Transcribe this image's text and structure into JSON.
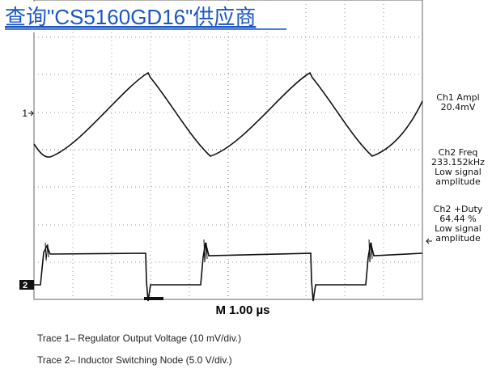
{
  "header": {
    "title": "查询\"CS5160GD16\"供应商"
  },
  "scope": {
    "channel_markers": [
      "1",
      "2"
    ],
    "measurements": [
      {
        "lines": [
          "Ch1 Ampl",
          "20.4mV"
        ]
      },
      {
        "lines": [
          "Ch2 Freq",
          "233.152kHz",
          "Low signal",
          "amplitude"
        ]
      },
      {
        "lines": [
          "Ch2 +Duty",
          "64.44 %",
          "Low signal",
          "amplitude"
        ]
      }
    ],
    "timebase": "M 1.00 µs"
  },
  "captions": [
    "Trace 1– Regulator Output Voltage (10 mV/div.)",
    "Trace 2– Inductor Switching Node (5.0 V/div.)"
  ]
}
